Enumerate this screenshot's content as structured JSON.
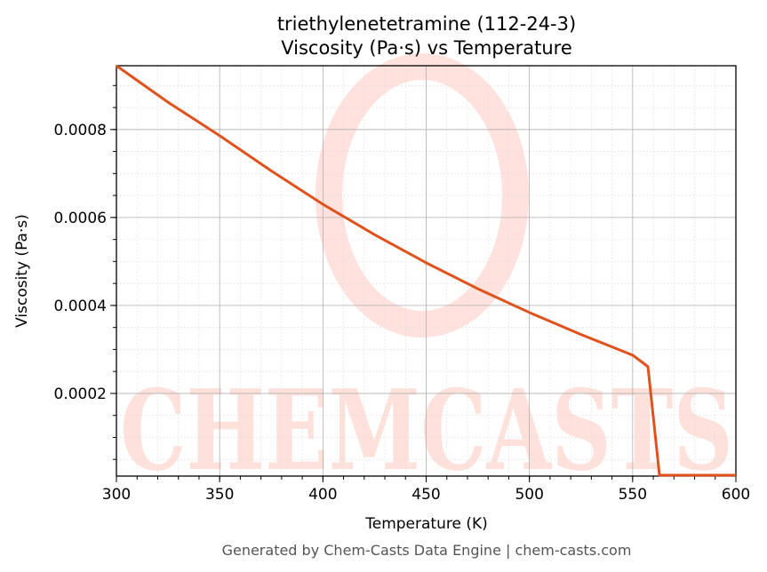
{
  "chart_data": {
    "type": "line",
    "title": "triethylenetetramine (112-24-3)",
    "subtitle": "Viscosity (Pa·s) vs Temperature",
    "xlabel": "Temperature (K)",
    "ylabel": "Viscosity (Pa·s)",
    "xlim": [
      300,
      600
    ],
    "ylim": [
      1.21e-05,
      0.000945
    ],
    "xticks": [
      300,
      350,
      400,
      450,
      500,
      550,
      600
    ],
    "xtick_labels": [
      "300",
      "350",
      "400",
      "450",
      "500",
      "550",
      "600"
    ],
    "yticks": [
      0.0002,
      0.0004,
      0.0006,
      0.0008
    ],
    "ytick_labels": [
      "0.0002",
      "0.0004",
      "0.0006",
      "0.0008"
    ],
    "grid": true,
    "series": [
      {
        "name": "Viscosity",
        "color": "#e0521c",
        "x": [
          300,
          325,
          350,
          375,
          400,
          425,
          450,
          475,
          500,
          525,
          550,
          557.4,
          563,
          600
        ],
        "y": [
          0.000945,
          0.000862,
          0.000786,
          0.000706,
          0.00063,
          0.000561,
          0.000497,
          0.000438,
          0.000384,
          0.000334,
          0.000287,
          0.000261,
          1.4e-05,
          1.4e-05
        ]
      }
    ],
    "watermark": "CHEMCASTS",
    "footer": "Generated by Chem-Casts Data Engine | chem-casts.com"
  }
}
